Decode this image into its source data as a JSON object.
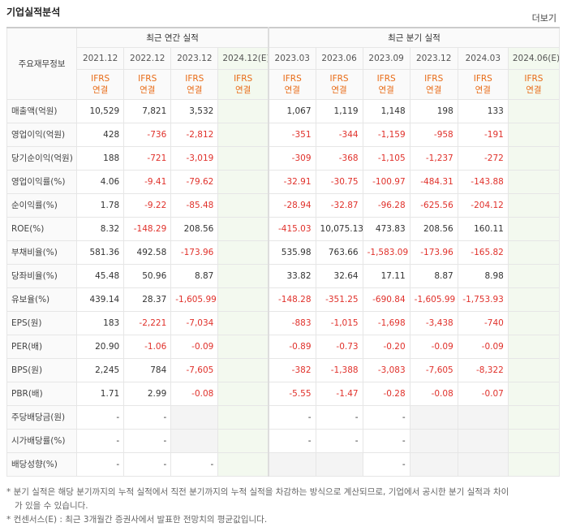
{
  "header": {
    "title": "기업실적분석",
    "more": "더보기"
  },
  "table": {
    "corner": "주요재무정보",
    "groups": [
      "최근 연간 실적",
      "최근 분기 실적"
    ],
    "periods": [
      "2021.12",
      "2022.12",
      "2023.12",
      "2024.12(E)",
      "2023.03",
      "2023.06",
      "2023.09",
      "2023.12",
      "2024.03",
      "2024.06(E)"
    ],
    "estimate_columns": [
      3,
      9
    ],
    "standards": [
      {
        "basis": "IFRS",
        "scope": "연결"
      },
      {
        "basis": "IFRS",
        "scope": "연결"
      },
      {
        "basis": "IFRS",
        "scope": "연결"
      },
      {
        "basis": "IFRS",
        "scope": "연결"
      },
      {
        "basis": "IFRS",
        "scope": "연결"
      },
      {
        "basis": "IFRS",
        "scope": "연결"
      },
      {
        "basis": "IFRS",
        "scope": "연결"
      },
      {
        "basis": "IFRS",
        "scope": "연결"
      },
      {
        "basis": "IFRS",
        "scope": "연결"
      },
      {
        "basis": "IFRS",
        "scope": "연결"
      }
    ],
    "sections": [
      [
        {
          "label": "매출액(억원)",
          "values": [
            "10,529",
            "7,821",
            "3,532",
            null,
            "1,067",
            "1,119",
            "1,148",
            "198",
            "133",
            null
          ]
        },
        {
          "label": "영업이익(억원)",
          "values": [
            "428",
            "-736",
            "-2,812",
            null,
            "-351",
            "-344",
            "-1,159",
            "-958",
            "-191",
            null
          ]
        },
        {
          "label": "당기순이익(억원)",
          "values": [
            "188",
            "-721",
            "-3,019",
            null,
            "-309",
            "-368",
            "-1,105",
            "-1,237",
            "-272",
            null
          ]
        }
      ],
      [
        {
          "label": "영업이익률(%)",
          "values": [
            "4.06",
            "-9.41",
            "-79.62",
            null,
            "-32.91",
            "-30.75",
            "-100.97",
            "-484.31",
            "-143.88",
            null
          ]
        },
        {
          "label": "순이익률(%)",
          "values": [
            "1.78",
            "-9.22",
            "-85.48",
            null,
            "-28.94",
            "-32.87",
            "-96.28",
            "-625.56",
            "-204.12",
            null
          ]
        },
        {
          "label": "ROE(%)",
          "values": [
            "8.32",
            "-148.29",
            "208.56",
            null,
            "-415.03",
            "10,075.13",
            "473.83",
            "208.56",
            "160.11",
            null
          ]
        }
      ],
      [
        {
          "label": "부채비율(%)",
          "values": [
            "581.36",
            "492.58",
            "-173.96",
            null,
            "535.98",
            "763.66",
            "-1,583.09",
            "-173.96",
            "-165.82",
            null
          ]
        },
        {
          "label": "당좌비율(%)",
          "values": [
            "45.48",
            "50.96",
            "8.87",
            null,
            "33.82",
            "32.64",
            "17.11",
            "8.87",
            "8.98",
            null
          ]
        },
        {
          "label": "유보율(%)",
          "values": [
            "439.14",
            "28.37",
            "-1,605.99",
            null,
            "-148.28",
            "-351.25",
            "-690.84",
            "-1,605.99",
            "-1,753.93",
            null
          ]
        }
      ],
      [
        {
          "label": "EPS(원)",
          "values": [
            "183",
            "-2,221",
            "-7,034",
            null,
            "-883",
            "-1,015",
            "-1,698",
            "-3,438",
            "-740",
            null
          ]
        },
        {
          "label": "PER(배)",
          "values": [
            "20.90",
            "-1.06",
            "-0.09",
            null,
            "-0.89",
            "-0.73",
            "-0.20",
            "-0.09",
            "-0.09",
            null
          ]
        },
        {
          "label": "BPS(원)",
          "values": [
            "2,245",
            "784",
            "-7,605",
            null,
            "-382",
            "-1,388",
            "-3,083",
            "-7,605",
            "-8,322",
            null
          ]
        },
        {
          "label": "PBR(배)",
          "values": [
            "1.71",
            "2.99",
            "-0.08",
            null,
            "-5.55",
            "-1.47",
            "-0.28",
            "-0.08",
            "-0.07",
            null
          ]
        }
      ],
      [
        {
          "label": "주당배당금(원)",
          "values": [
            "-",
            "-",
            null,
            null,
            "-",
            "-",
            "-",
            null,
            null,
            null
          ]
        },
        {
          "label": "시가배당률(%)",
          "values": [
            "-",
            "-",
            null,
            null,
            "-",
            "-",
            "-",
            null,
            null,
            null
          ]
        },
        {
          "label": "배당성향(%)",
          "values": [
            "-",
            "-",
            "-",
            null,
            null,
            null,
            "-",
            null,
            null,
            null
          ]
        }
      ]
    ]
  },
  "notes": [
    "* 분기 실적은 해당 분기까지의 누적 실적에서 직전 분기까지의 누적 실적을 차감하는 방식으로 계산되므로, 기업에서 공시한 분기 실적과 차이가 있을 수 있습니다.",
    "* 컨센서스(E) : 최근 3개월간 증권사에서 발표한 전망치의 평균값입니다."
  ]
}
